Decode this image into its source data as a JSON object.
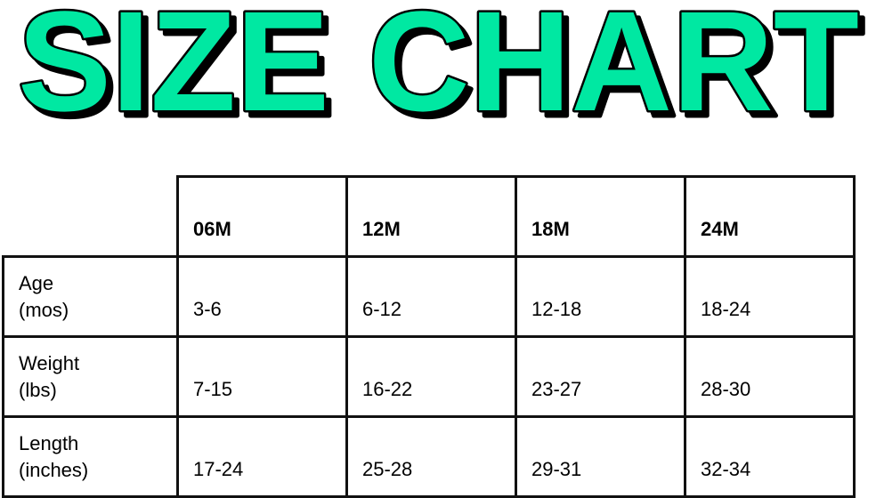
{
  "title": "SIZE CHART",
  "colors": {
    "title_fill": "#00E8A2",
    "title_outline": "#000000"
  },
  "table": {
    "headers": [
      "06M",
      "12M",
      "18M",
      "24M"
    ],
    "rows": [
      {
        "label1": "Age",
        "label2": "(mos)",
        "values": [
          "3-6",
          "6-12",
          "12-18",
          "18-24"
        ]
      },
      {
        "label1": "Weight",
        "label2": "(lbs)",
        "values": [
          "7-15",
          "16-22",
          "23-27",
          "28-30"
        ]
      },
      {
        "label1": "Length",
        "label2": "(inches)",
        "values": [
          "17-24",
          "25-28",
          "29-31",
          "32-34"
        ]
      }
    ]
  }
}
